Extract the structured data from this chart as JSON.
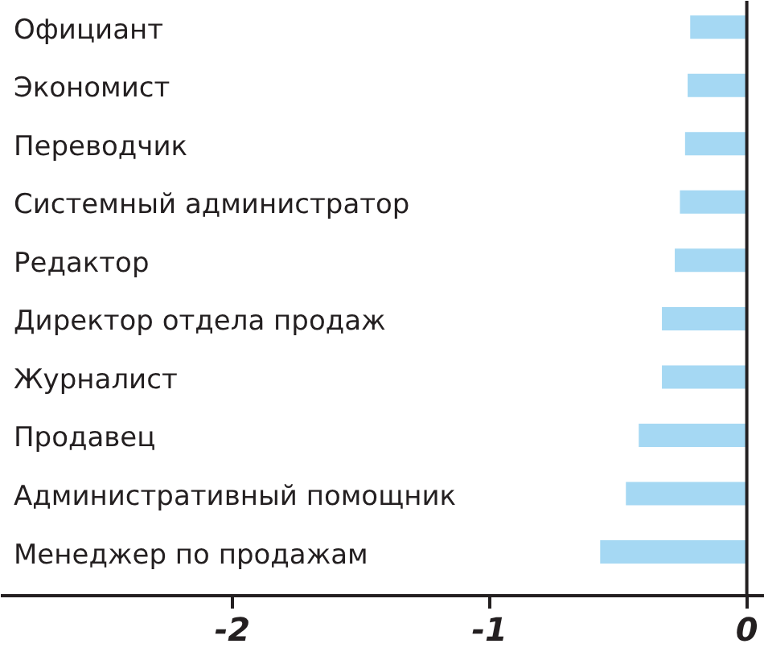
{
  "chart_data": {
    "type": "bar",
    "orientation": "horizontal",
    "categories": [
      "Официант",
      "Экономист",
      "Переводчик",
      "Системный администратор",
      "Редактор",
      "Директор отдела продаж",
      "Журналист",
      "Продавец",
      "Административный помощник",
      "Менеджер по продажам"
    ],
    "values": [
      -0.22,
      -0.23,
      -0.24,
      -0.26,
      -0.28,
      -0.33,
      -0.33,
      -0.42,
      -0.47,
      -0.57
    ],
    "color": "#a5d8f3",
    "xlim": [
      -2.9,
      0.07
    ],
    "xticks": [
      -2,
      -1,
      0
    ]
  }
}
